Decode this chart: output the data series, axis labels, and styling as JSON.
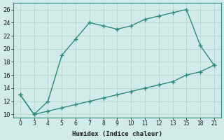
{
  "xlabel": "Humidex (Indice chaleur)",
  "upper_y": [
    13,
    10,
    12,
    19,
    21.5,
    24,
    23.5,
    23,
    23.5,
    24.5,
    25,
    25.5,
    26,
    20.5,
    17.5
  ],
  "lower_y": [
    13,
    10,
    10.5,
    11,
    11.5,
    12,
    12.5,
    13,
    13.5,
    14,
    14.5,
    15,
    16,
    16.5,
    17.5
  ],
  "line_color": "#2e8b7a",
  "bg_color": "#d0ebe8",
  "grid_color": "#b8d8d4",
  "xlim": [
    -0.5,
    14.5
  ],
  "ylim": [
    9.5,
    27
  ],
  "xtick_labels": [
    "0",
    "3",
    "4",
    "5",
    "6",
    "7",
    "8",
    "9",
    "10",
    "11",
    "12",
    "13",
    "15",
    "18",
    "21"
  ],
  "yticks": [
    10,
    12,
    14,
    16,
    18,
    20,
    22,
    24,
    26
  ],
  "ytick_labels": [
    "10",
    "12",
    "14",
    "16",
    "18",
    "20",
    "22",
    "24",
    "26"
  ]
}
